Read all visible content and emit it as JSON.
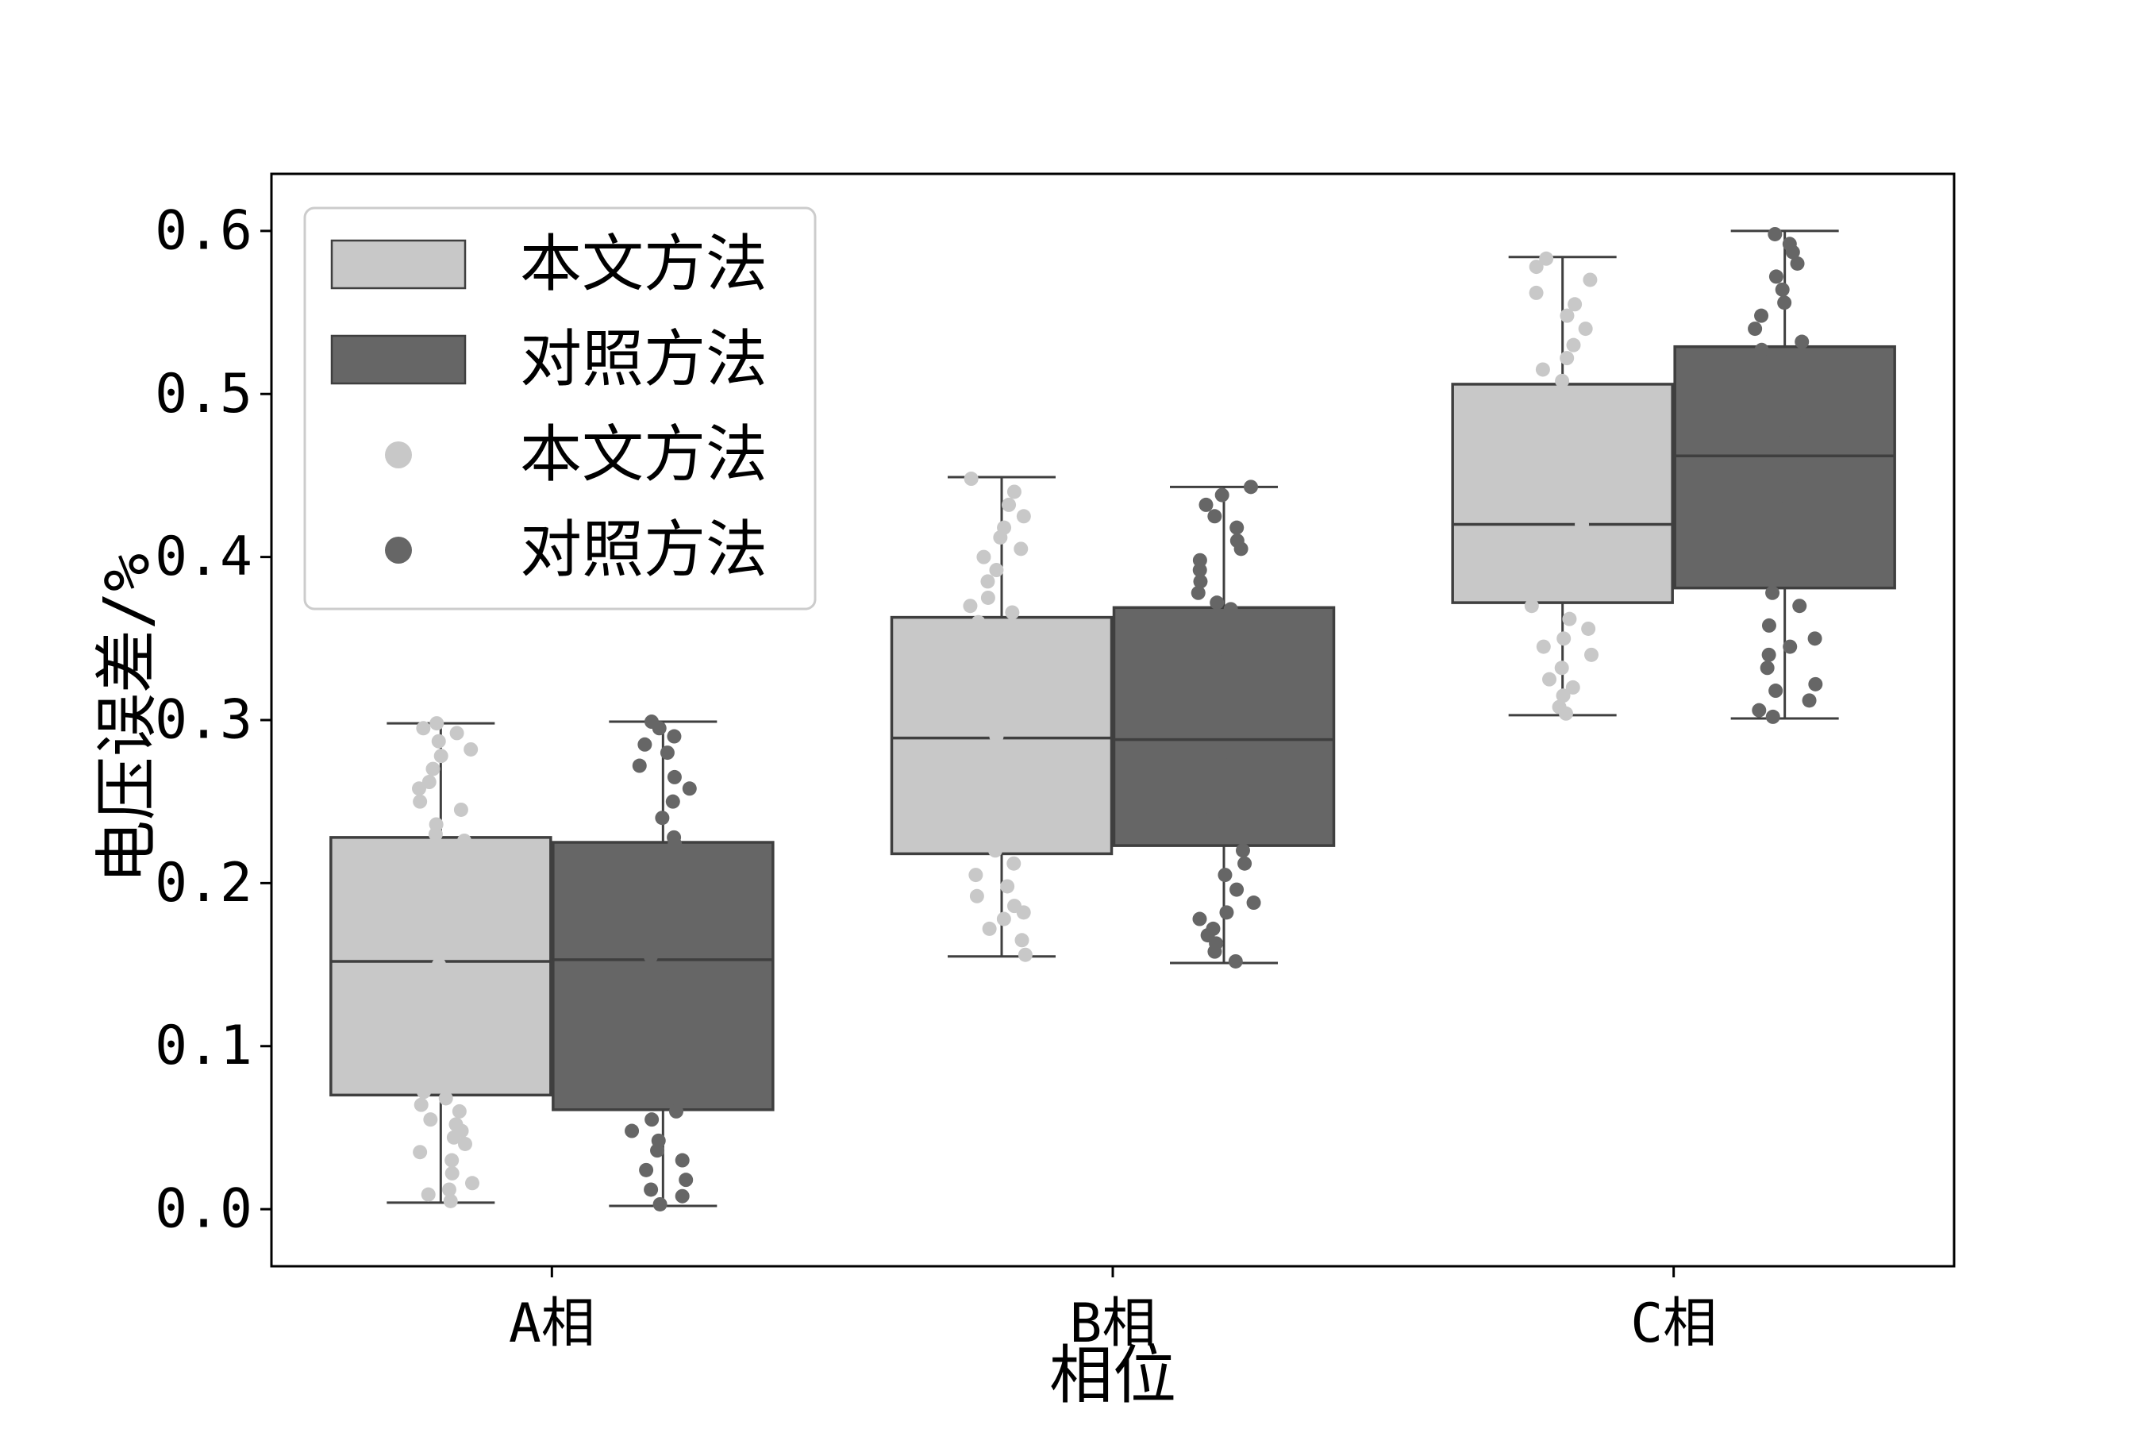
{
  "chart_data": {
    "type": "box",
    "xlabel": "相位",
    "ylabel": "电压误差/%",
    "categories": [
      "A相",
      "B相",
      "C相"
    ],
    "ylim": [
      -0.035,
      0.635
    ],
    "yticks": [
      "0.0",
      "0.1",
      "0.2",
      "0.3",
      "0.4",
      "0.5",
      "0.6"
    ],
    "ytick_values": [
      0.0,
      0.1,
      0.2,
      0.3,
      0.4,
      0.5,
      0.6
    ],
    "legend_position": "upper-left",
    "series": [
      {
        "name": "本文方法",
        "color": "#c8c8c8",
        "boxes": [
          {
            "min": 0.004,
            "q1": 0.07,
            "median": 0.152,
            "q3": 0.228,
            "max": 0.298
          },
          {
            "min": 0.155,
            "q1": 0.218,
            "median": 0.289,
            "q3": 0.363,
            "max": 0.449
          },
          {
            "min": 0.303,
            "q1": 0.372,
            "median": 0.42,
            "q3": 0.506,
            "max": 0.584
          }
        ],
        "points": [
          [
            0.005,
            0.009,
            0.012,
            0.016,
            0.022,
            0.03,
            0.035,
            0.04,
            0.044,
            0.048,
            0.052,
            0.055,
            0.06,
            0.064,
            0.068,
            0.072,
            0.08,
            0.095,
            0.11,
            0.125,
            0.14,
            0.15,
            0.158,
            0.17,
            0.185,
            0.2,
            0.215,
            0.226,
            0.23,
            0.236,
            0.245,
            0.25,
            0.258,
            0.262,
            0.27,
            0.278,
            0.282,
            0.287,
            0.292,
            0.295,
            0.298
          ],
          [
            0.156,
            0.165,
            0.172,
            0.178,
            0.182,
            0.186,
            0.192,
            0.198,
            0.205,
            0.212,
            0.22,
            0.235,
            0.25,
            0.265,
            0.28,
            0.29,
            0.3,
            0.315,
            0.33,
            0.345,
            0.36,
            0.366,
            0.37,
            0.375,
            0.385,
            0.392,
            0.4,
            0.405,
            0.412,
            0.418,
            0.425,
            0.432,
            0.44,
            0.448
          ],
          [
            0.304,
            0.308,
            0.315,
            0.32,
            0.325,
            0.332,
            0.34,
            0.345,
            0.35,
            0.356,
            0.362,
            0.37,
            0.378,
            0.39,
            0.405,
            0.42,
            0.44,
            0.46,
            0.48,
            0.5,
            0.508,
            0.515,
            0.522,
            0.53,
            0.54,
            0.548,
            0.555,
            0.562,
            0.57,
            0.578,
            0.583
          ]
        ]
      },
      {
        "name": "对照方法",
        "color": "#666666",
        "boxes": [
          {
            "min": 0.002,
            "q1": 0.061,
            "median": 0.153,
            "q3": 0.225,
            "max": 0.299
          },
          {
            "min": 0.151,
            "q1": 0.223,
            "median": 0.288,
            "q3": 0.369,
            "max": 0.443
          },
          {
            "min": 0.301,
            "q1": 0.381,
            "median": 0.462,
            "q3": 0.529,
            "max": 0.6
          }
        ],
        "points": [
          [
            0.003,
            0.008,
            0.012,
            0.018,
            0.024,
            0.03,
            0.036,
            0.042,
            0.048,
            0.055,
            0.06,
            0.075,
            0.09,
            0.11,
            0.13,
            0.145,
            0.155,
            0.17,
            0.185,
            0.2,
            0.215,
            0.224,
            0.228,
            0.24,
            0.25,
            0.258,
            0.265,
            0.272,
            0.28,
            0.285,
            0.29,
            0.295,
            0.299
          ],
          [
            0.152,
            0.158,
            0.163,
            0.168,
            0.172,
            0.178,
            0.182,
            0.188,
            0.196,
            0.205,
            0.212,
            0.22,
            0.24,
            0.26,
            0.28,
            0.3,
            0.32,
            0.34,
            0.36,
            0.368,
            0.372,
            0.378,
            0.385,
            0.392,
            0.398,
            0.405,
            0.41,
            0.418,
            0.425,
            0.432,
            0.438,
            0.443
          ],
          [
            0.302,
            0.306,
            0.312,
            0.318,
            0.322,
            0.332,
            0.34,
            0.345,
            0.35,
            0.358,
            0.37,
            0.378,
            0.39,
            0.41,
            0.43,
            0.45,
            0.47,
            0.49,
            0.51,
            0.52,
            0.527,
            0.532,
            0.54,
            0.548,
            0.556,
            0.564,
            0.572,
            0.58,
            0.587,
            0.592,
            0.598
          ]
        ]
      }
    ],
    "legend": {
      "entries": [
        {
          "label": "本文方法",
          "marker": "patch",
          "color": "#c8c8c8"
        },
        {
          "label": "对照方法",
          "marker": "patch",
          "color": "#666666"
        },
        {
          "label": "本文方法",
          "marker": "dot",
          "color": "#c8c8c8"
        },
        {
          "label": "对照方法",
          "marker": "dot",
          "color": "#666666"
        }
      ]
    }
  }
}
